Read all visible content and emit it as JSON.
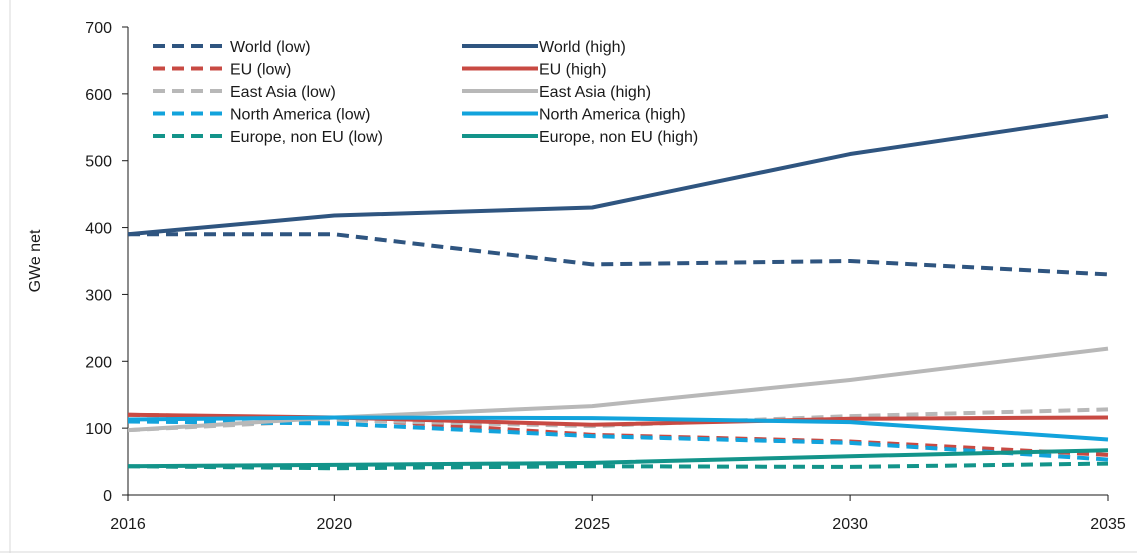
{
  "chart_data": {
    "type": "line",
    "title": "",
    "xlabel": "",
    "ylabel": "GWe net",
    "x": [
      2016,
      2020,
      2025,
      2030,
      2035
    ],
    "x_tick_labels": [
      "2016",
      "2020",
      "2025",
      "2030",
      "2035"
    ],
    "ylim": [
      0,
      700
    ],
    "y_ticks": [
      0,
      100,
      200,
      300,
      400,
      500,
      600,
      700
    ],
    "y_tick_labels": [
      "0",
      "100",
      "200",
      "300",
      "400",
      "500",
      "600",
      "700"
    ],
    "grid": false,
    "legend_position": "top-left",
    "series": [
      {
        "name": "World (low)",
        "color": "#2f5580",
        "style": "dashed",
        "values": [
          390,
          390,
          345,
          350,
          330
        ]
      },
      {
        "name": "World (high)",
        "color": "#2f5580",
        "style": "solid",
        "values": [
          390,
          418,
          430,
          510,
          567
        ]
      },
      {
        "name": "EU (low)",
        "color": "#c84a43",
        "style": "dashed",
        "values": [
          120,
          115,
          90,
          80,
          60
        ]
      },
      {
        "name": "EU (high)",
        "color": "#c84a43",
        "style": "solid",
        "values": [
          120,
          116,
          105,
          114,
          116
        ]
      },
      {
        "name": "East Asia (low)",
        "color": "#b8b8b8",
        "style": "dashed",
        "values": [
          97,
          112,
          103,
          118,
          128
        ]
      },
      {
        "name": "East Asia (high)",
        "color": "#b8b8b8",
        "style": "solid",
        "values": [
          97,
          116,
          133,
          172,
          219
        ]
      },
      {
        "name": "North America (low)",
        "color": "#12a3dc",
        "style": "dashed",
        "values": [
          110,
          107,
          88,
          78,
          53
        ]
      },
      {
        "name": "North America (high)",
        "color": "#12a3dc",
        "style": "solid",
        "values": [
          113,
          116,
          115,
          109,
          83
        ]
      },
      {
        "name": "Europe, non EU (low)",
        "color": "#13948a",
        "style": "dashed",
        "values": [
          43,
          40,
          43,
          42,
          47
        ]
      },
      {
        "name": "Europe, non EU (high)",
        "color": "#13948a",
        "style": "solid",
        "values": [
          43,
          45,
          48,
          58,
          67
        ]
      }
    ]
  }
}
